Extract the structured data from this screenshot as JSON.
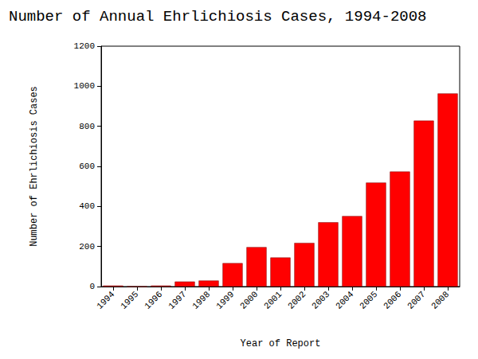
{
  "chart_data": {
    "type": "bar",
    "title": "Number of Annual Ehrlichiosis Cases, 1994-2008",
    "x_label": "Year of Report",
    "y_label": "Number of Ehrlichiosis Cases",
    "categories": [
      "1994",
      "1995",
      "1996",
      "1997",
      "1998",
      "1999",
      "2000",
      "2001",
      "2002",
      "2003",
      "2004",
      "2005",
      "2006",
      "2007",
      "2008"
    ],
    "values": [
      5,
      0,
      5,
      25,
      30,
      117,
      197,
      145,
      218,
      321,
      352,
      519,
      574,
      828,
      964
    ],
    "color": "#ff0000",
    "ylim": [
      0,
      1200
    ],
    "yticks": [
      0,
      200,
      400,
      600,
      800,
      1000,
      1200
    ],
    "grid": false
  }
}
